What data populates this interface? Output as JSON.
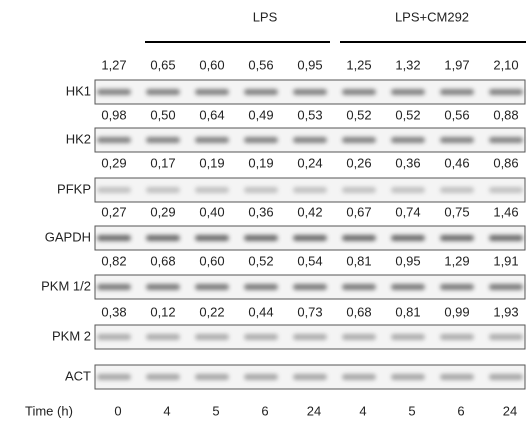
{
  "groups": [
    {
      "label": "LPS"
    },
    {
      "label": "LPS+CM292"
    }
  ],
  "rows": [
    {
      "label": "HK1",
      "values": [
        "1,27",
        "0,65",
        "0,60",
        "0,56",
        "0,95",
        "1,25",
        "1,32",
        "1,97",
        "2,10"
      ]
    },
    {
      "label": "HK2",
      "values": [
        "0,98",
        "0,50",
        "0,64",
        "0,49",
        "0,53",
        "0,52",
        "0,52",
        "0,56",
        "0,88"
      ]
    },
    {
      "label": "PFKP",
      "values": [
        "0,29",
        "0,17",
        "0,19",
        "0,19",
        "0,24",
        "0,26",
        "0,36",
        "0,46",
        "0,86"
      ]
    },
    {
      "label": "GAPDH",
      "values": [
        "0,27",
        "0,29",
        "0,40",
        "0,36",
        "0,42",
        "0,67",
        "0,74",
        "0,75",
        "1,46"
      ]
    },
    {
      "label": "PKM 1/2",
      "values": [
        "0,82",
        "0,68",
        "0,60",
        "0,52",
        "0,54",
        "0,81",
        "0,95",
        "1,29",
        "1,91"
      ]
    },
    {
      "label": "PKM 2",
      "values": [
        "0,38",
        "0,12",
        "0,22",
        "0,44",
        "0,73",
        "0,68",
        "0,81",
        "0,99",
        "1,93"
      ]
    },
    {
      "label": "ACT"
    }
  ],
  "time": {
    "label": "Time (h)",
    "values": [
      "0",
      "4",
      "5",
      "6",
      "24",
      "4",
      "5",
      "6",
      "24"
    ]
  }
}
